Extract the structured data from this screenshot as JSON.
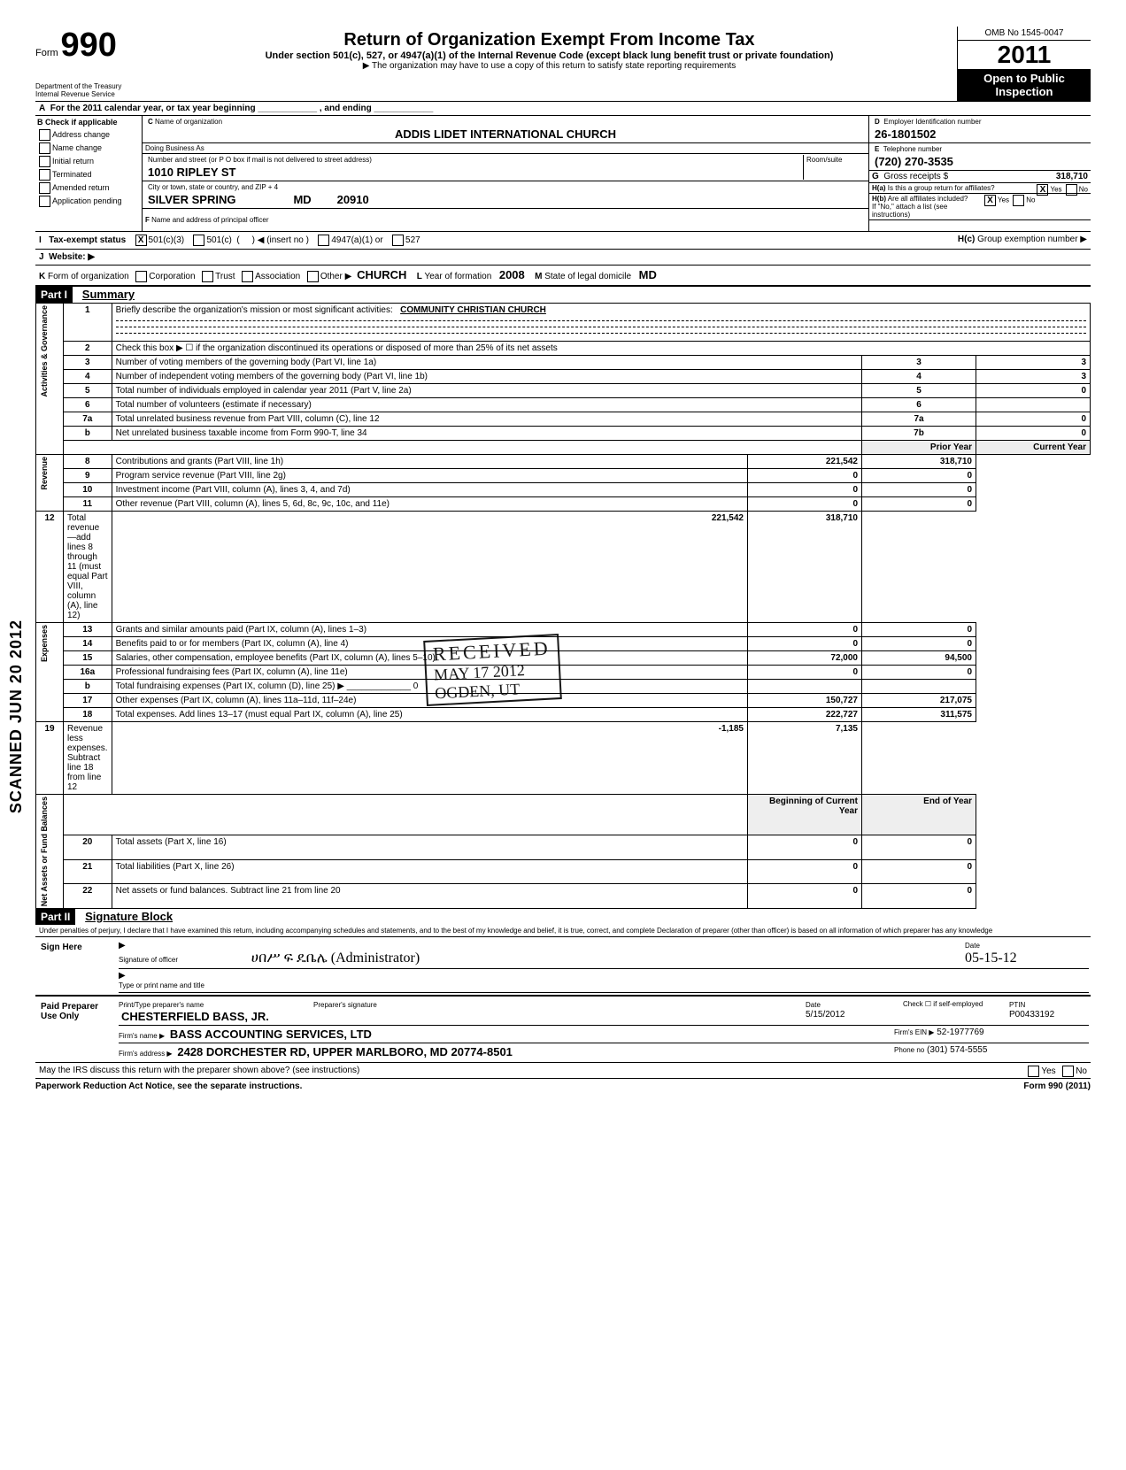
{
  "header": {
    "form_word": "Form",
    "form_number": "990",
    "title": "Return of Organization Exempt From Income Tax",
    "subtitle": "Under section 501(c), 527, or 4947(a)(1) of the Internal Revenue Code (except black lung benefit trust or private foundation)",
    "note": "▶ The organization may have to use a copy of this return to satisfy state reporting requirements",
    "dept": "Department of the Treasury\nInternal Revenue Service",
    "omb": "OMB No  1545-0047",
    "year": "2011",
    "open": "Open to Public\nInspection"
  },
  "A": "For the 2011 calendar year, or tax year beginning ____________ , and ending ____________",
  "B": {
    "header": "Check if applicable",
    "items": [
      "Address change",
      "Name change",
      "Initial return",
      "Terminated",
      "Amended return",
      "Application pending"
    ]
  },
  "C": {
    "name_label": "Name of organization",
    "name": "ADDIS LIDET INTERNATIONAL CHURCH",
    "dba_label": "Doing Business As",
    "street_label": "Number and street (or P O  box if mail is not delivered to street address)",
    "room_label": "Room/suite",
    "street": "1010  RIPLEY ST",
    "city_label": "City or town, state or country, and ZIP + 4",
    "city": "SILVER SPRING",
    "state": "MD",
    "zip": "20910",
    "officer_label": "Name and address of principal officer"
  },
  "D": {
    "label": "Employer Identification number",
    "value": "26-1801502"
  },
  "E": {
    "label": "Telephone number",
    "value": "(720) 270-3535"
  },
  "G": {
    "label": "Gross receipts $",
    "value": "318,710"
  },
  "H": {
    "a": "Is this a group return for affiliates?",
    "a_yes": true,
    "a_no": false,
    "b": "Are all affiliates included?",
    "b_yes": true,
    "b_no": false,
    "note": "If \"No,\" attach a list  (see instructions)",
    "c": "Group exemption number ▶"
  },
  "I": {
    "label": "Tax-exempt status",
    "c3": "501(c)(3)",
    "c": "501(c)",
    "insert": "◀ (insert no )",
    "a": "4947(a)(1) or",
    "five": "527"
  },
  "J": {
    "label": "Website: ▶"
  },
  "K": {
    "label": "Form of organization",
    "opts": [
      "Corporation",
      "Trust",
      "Association",
      "Other ▶"
    ],
    "other_val": "CHURCH",
    "L": "Year of formation",
    "Lval": "2008",
    "M": "State of legal domicile",
    "Mval": "MD"
  },
  "part1": {
    "hdr": "Part I",
    "title": "Summary"
  },
  "summary": {
    "line1": {
      "no": "1",
      "text": "Briefly describe the organization's mission or most significant activities:",
      "val": "COMMUNITY CHRISTIAN CHURCH"
    },
    "line2": {
      "no": "2",
      "text": "Check this box  ▶ ☐  if the organization discontinued its operations or disposed of more than 25% of its net assets"
    },
    "rows": [
      {
        "no": "3",
        "text": "Number of voting members of the governing body (Part VI, line 1a)",
        "box": "3",
        "val": "3"
      },
      {
        "no": "4",
        "text": "Number of independent voting members of the governing body (Part VI, line 1b)",
        "box": "4",
        "val": "3"
      },
      {
        "no": "5",
        "text": "Total number of individuals employed in calendar year 2011 (Part V, line 2a)",
        "box": "5",
        "val": "0"
      },
      {
        "no": "6",
        "text": "Total number of volunteers (estimate if necessary)",
        "box": "6",
        "val": ""
      },
      {
        "no": "7a",
        "text": "Total unrelated business revenue from Part VIII, column (C), line 12",
        "box": "7a",
        "val": "0"
      },
      {
        "no": "b",
        "text": "Net unrelated business taxable income from Form 990-T, line 34",
        "box": "7b",
        "val": "0"
      }
    ],
    "col_hdr_prior": "Prior Year",
    "col_hdr_curr": "Current Year",
    "revenue": [
      {
        "no": "8",
        "text": "Contributions and grants (Part VIII, line 1h)",
        "prior": "221,542",
        "curr": "318,710"
      },
      {
        "no": "9",
        "text": "Program service revenue (Part VIII, line 2g)",
        "prior": "0",
        "curr": "0"
      },
      {
        "no": "10",
        "text": "Investment income (Part VIII, column (A), lines 3, 4, and 7d)",
        "prior": "0",
        "curr": "0"
      },
      {
        "no": "11",
        "text": "Other revenue (Part VIII, column (A), lines 5, 6d, 8c, 9c, 10c, and 11e)",
        "prior": "0",
        "curr": "0"
      },
      {
        "no": "12",
        "text": "Total revenue—add lines 8 through 11 (must equal Part VIII, column (A), line 12)",
        "prior": "221,542",
        "curr": "318,710"
      }
    ],
    "expenses": [
      {
        "no": "13",
        "text": "Grants and similar amounts paid (Part IX, column (A), lines 1–3)",
        "prior": "0",
        "curr": "0"
      },
      {
        "no": "14",
        "text": "Benefits paid to or for members (Part IX, column (A), line 4)",
        "prior": "0",
        "curr": "0"
      },
      {
        "no": "15",
        "text": "Salaries, other compensation, employee benefits (Part IX, column (A), lines 5–10)",
        "prior": "72,000",
        "curr": "94,500"
      },
      {
        "no": "16a",
        "text": "Professional fundraising fees (Part IX, column (A), line 11e)",
        "prior": "0",
        "curr": "0"
      },
      {
        "no": "b",
        "text": "Total fundraising expenses (Part IX, column (D), line 25) ▶ _____________ 0",
        "prior": "",
        "curr": ""
      },
      {
        "no": "17",
        "text": "Other expenses (Part IX, column (A), lines 11a–11d, 11f–24e)",
        "prior": "150,727",
        "curr": "217,075"
      },
      {
        "no": "18",
        "text": "Total expenses. Add lines 13–17 (must equal Part IX, column (A), line 25)",
        "prior": "222,727",
        "curr": "311,575"
      },
      {
        "no": "19",
        "text": "Revenue less expenses. Subtract line 18 from line 12",
        "prior": "-1,185",
        "curr": "7,135"
      }
    ],
    "bal_hdr_begin": "Beginning of Current Year",
    "bal_hdr_end": "End of Year",
    "balances": [
      {
        "no": "20",
        "text": "Total assets (Part X, line 16)",
        "begin": "0",
        "end": "0"
      },
      {
        "no": "21",
        "text": "Total liabilities (Part X, line 26)",
        "begin": "0",
        "end": "0"
      },
      {
        "no": "22",
        "text": "Net assets or fund balances. Subtract line 21 from line 20",
        "begin": "0",
        "end": "0"
      }
    ],
    "side_labels": [
      "Activities & Governance",
      "Revenue",
      "Expenses",
      "Net Assets or\nFund Balances"
    ]
  },
  "part2": {
    "hdr": "Part II",
    "title": "Signature Block",
    "penalty": "Under penalties of perjury, I declare that I have examined this return, including accompanying schedules and statements, and to the best of my knowledge and belief, it is true, correct, and complete  Declaration of preparer (other than officer) is based on all information of which preparer has any knowledge"
  },
  "sign": {
    "here": "Sign\nHere",
    "sig_label": "Signature of officer",
    "date_label": "Date",
    "date_val": "05-15-12",
    "name_label": "Type or print name and title",
    "name_written": "ሀበሥ  ፍ  ዴቤሌ   (Administrator)"
  },
  "paid": {
    "label": "Paid\nPreparer\nUse Only",
    "prep_name_label": "Print/Type preparer's name",
    "prep_sig_label": "Preparer's signature",
    "date_label": "Date",
    "check_label": "Check ☐ if\nself-employed",
    "ptin_label": "PTIN",
    "prep_name": "CHESTERFIELD BASS, JR.",
    "date": "5/15/2012",
    "ptin": "P00433192",
    "firm_name_label": "Firm's name  ▶",
    "firm_name": "BASS ACCOUNTING SERVICES, LTD",
    "firm_ein_label": "Firm's EIN ▶",
    "firm_ein": "52-1977769",
    "firm_addr_label": "Firm's address ▶",
    "firm_addr": "2428 DORCHESTER RD, UPPER MARLBORO, MD 20774-8501",
    "phone_label": "Phone no",
    "phone": "(301) 574-5555"
  },
  "discuss": "May the IRS discuss this return with the preparer shown above? (see instructions)",
  "footer_left": "Paperwork Reduction Act Notice, see the separate instructions.",
  "footer_right": "Form 990 (2011)",
  "scanned": "SCANNED   JUN 20 2012",
  "stamp": {
    "received": "RECEIVED",
    "date": "MAY 17 2012",
    "loc": "OGDEN, UT"
  }
}
